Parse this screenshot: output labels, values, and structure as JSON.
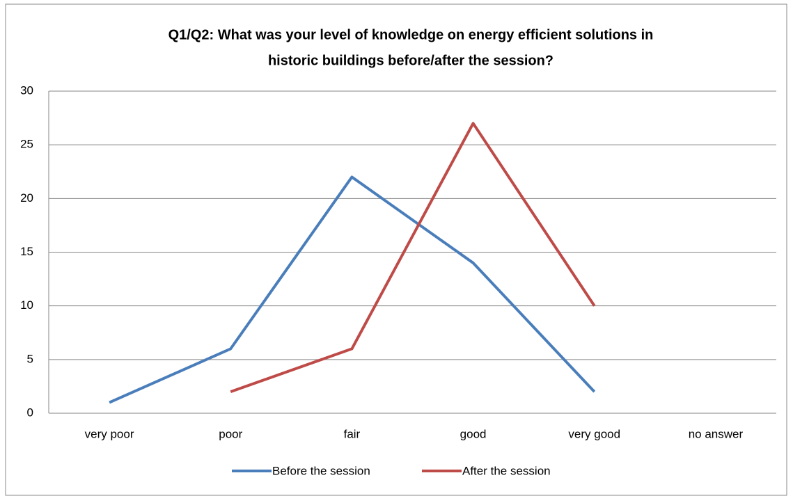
{
  "chart_data": {
    "type": "line",
    "title": [
      "Q1/Q2: What was your level of knowledge on energy efficient solutions in",
      "historic buildings before/after the session?"
    ],
    "categories": [
      "very poor",
      "poor",
      "fair",
      "good",
      "very good",
      "no answer"
    ],
    "series": [
      {
        "name": "Before the session",
        "color": "#4a7ebb",
        "values": [
          1,
          6,
          22,
          14,
          2,
          null
        ]
      },
      {
        "name": "After the session",
        "color": "#be4b48",
        "values": [
          null,
          2,
          6,
          27,
          10,
          null
        ]
      }
    ],
    "ylim": [
      0,
      30
    ],
    "yticks": [
      0,
      5,
      10,
      15,
      20,
      25,
      30
    ],
    "grid": true,
    "legend": "bottom"
  }
}
